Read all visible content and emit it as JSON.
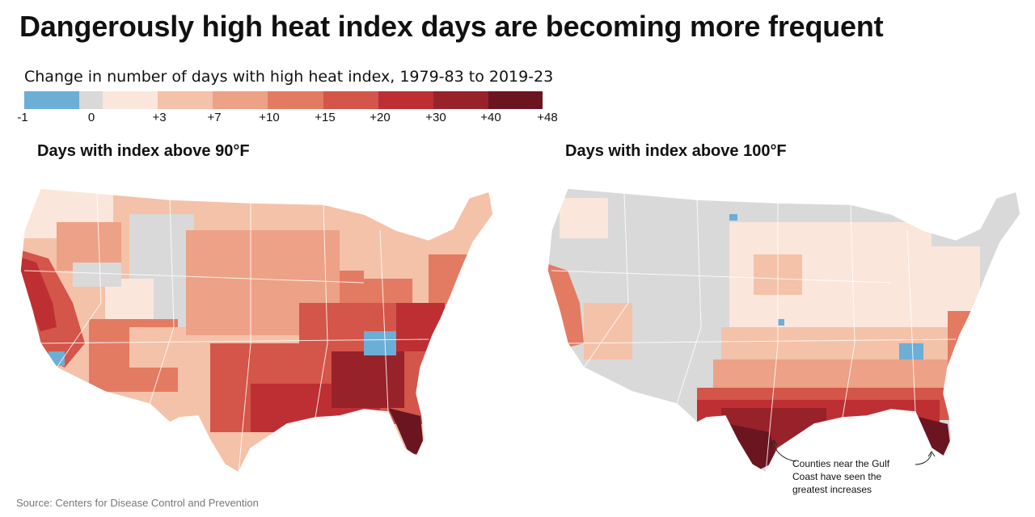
{
  "title": "Dangerously high heat index days are becoming more frequent",
  "legend": {
    "subtitle": "Change in number of days with high heat index, 1979-83 to 2019-23",
    "ticks": [
      "-1",
      "0",
      "+3",
      "+7",
      "+10",
      "+15",
      "+20",
      "+30",
      "+40",
      "+48"
    ],
    "colors": [
      "#6baed6",
      "#d9d9d9",
      "#fbe6dc",
      "#f4c1a9",
      "#eda186",
      "#e37b62",
      "#d45549",
      "#bd2f33",
      "#98222a",
      "#6b1521"
    ]
  },
  "maps": [
    {
      "title": "Days with index above 90°F"
    },
    {
      "title": "Days with index above 100°F"
    }
  ],
  "annotation": "Counties near the Gulf Coast have seen the greatest increases",
  "source": "Source: Centers for Disease Control and Prevention"
}
